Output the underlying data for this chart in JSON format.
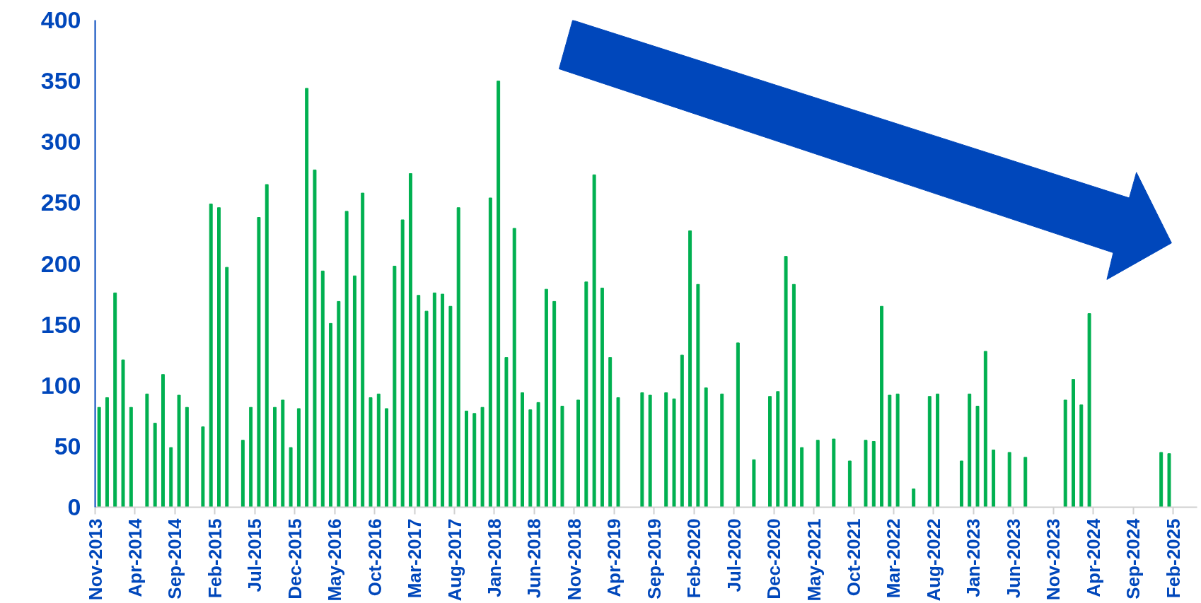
{
  "chart_data": {
    "type": "bar",
    "color": "#00b050",
    "x": [
      "2013-11",
      "2013-12",
      "2014-01",
      "2014-02",
      "2014-03",
      "2014-05",
      "2014-06",
      "2014-07",
      "2014-08",
      "2014-09",
      "2014-10",
      "2014-12",
      "2015-01",
      "2015-02",
      "2015-03",
      "2015-05",
      "2015-06",
      "2015-07",
      "2015-08",
      "2015-09",
      "2015-10",
      "2015-11",
      "2015-12",
      "2016-01",
      "2016-02",
      "2016-03",
      "2016-04",
      "2016-05",
      "2016-06",
      "2016-07",
      "2016-08",
      "2016-09",
      "2016-10",
      "2016-11",
      "2016-12",
      "2017-01",
      "2017-02",
      "2017-03",
      "2017-04",
      "2017-05",
      "2017-06",
      "2017-07",
      "2017-08",
      "2017-09",
      "2017-10",
      "2017-11",
      "2017-12",
      "2018-01",
      "2018-02",
      "2018-03",
      "2018-04",
      "2018-05",
      "2018-06",
      "2018-07",
      "2018-08",
      "2018-09",
      "2018-11",
      "2018-12",
      "2019-01",
      "2019-02",
      "2019-03",
      "2019-04",
      "2019-07",
      "2019-08",
      "2019-10",
      "2019-11",
      "2019-12",
      "2020-01",
      "2020-02",
      "2020-03",
      "2020-05",
      "2020-07",
      "2020-09",
      "2020-11",
      "2020-12",
      "2021-01",
      "2021-02",
      "2021-03",
      "2021-05",
      "2021-07",
      "2021-09",
      "2021-11",
      "2021-12",
      "2022-01",
      "2022-02",
      "2022-03",
      "2022-05",
      "2022-07",
      "2022-08",
      "2022-11",
      "2022-12",
      "2023-01",
      "2023-02",
      "2023-03",
      "2023-05",
      "2023-07",
      "2023-12",
      "2024-01",
      "2024-02",
      "2024-03",
      "2024-12",
      "2025-01"
    ],
    "values": [
      82,
      90,
      176,
      121,
      82,
      93,
      69,
      109,
      49,
      92,
      82,
      66,
      249,
      246,
      197,
      55,
      82,
      238,
      265,
      82,
      88,
      49,
      81,
      344,
      277,
      194,
      151,
      169,
      243,
      190,
      258,
      90,
      93,
      81,
      198,
      236,
      274,
      174,
      161,
      176,
      175,
      165,
      246,
      79,
      77,
      82,
      254,
      350,
      123,
      229,
      94,
      80,
      86,
      179,
      169,
      83,
      88,
      185,
      273,
      180,
      123,
      90,
      94,
      92,
      94,
      89,
      125,
      227,
      183,
      98,
      93,
      135,
      39,
      91,
      95,
      206,
      183,
      49,
      55,
      56,
      38,
      55,
      54,
      165,
      92,
      93,
      15,
      91,
      93,
      38,
      93,
      83,
      128,
      47,
      45,
      41,
      88,
      105,
      84,
      159,
      45,
      44
    ],
    "xlim": [
      "2013-11",
      "2025-05"
    ],
    "xticks": [
      {
        "value": "2013-11",
        "label": "Nov-2013"
      },
      {
        "value": "2014-04",
        "label": "Apr-2014"
      },
      {
        "value": "2014-09",
        "label": "Sep-2014"
      },
      {
        "value": "2015-02",
        "label": "Feb-2015"
      },
      {
        "value": "2015-07",
        "label": "Jul-2015"
      },
      {
        "value": "2015-12",
        "label": "Dec-2015"
      },
      {
        "value": "2016-05",
        "label": "May-2016"
      },
      {
        "value": "2016-10",
        "label": "Oct-2016"
      },
      {
        "value": "2017-03",
        "label": "Mar-2017"
      },
      {
        "value": "2017-08",
        "label": "Aug-2017"
      },
      {
        "value": "2018-01",
        "label": "Jan-2018"
      },
      {
        "value": "2018-06",
        "label": "Jun-2018"
      },
      {
        "value": "2018-11",
        "label": "Nov-2018"
      },
      {
        "value": "2019-04",
        "label": "Apr-2019"
      },
      {
        "value": "2019-09",
        "label": "Sep-2019"
      },
      {
        "value": "2020-02",
        "label": "Feb-2020"
      },
      {
        "value": "2020-07",
        "label": "Jul-2020"
      },
      {
        "value": "2020-12",
        "label": "Dec-2020"
      },
      {
        "value": "2021-05",
        "label": "May-2021"
      },
      {
        "value": "2021-10",
        "label": "Oct-2021"
      },
      {
        "value": "2022-03",
        "label": "Mar-2022"
      },
      {
        "value": "2022-08",
        "label": "Aug-2022"
      },
      {
        "value": "2023-01",
        "label": "Jan-2023"
      },
      {
        "value": "2023-06",
        "label": "Jun-2023"
      },
      {
        "value": "2023-11",
        "label": "Nov-2023"
      },
      {
        "value": "2024-04",
        "label": "Apr-2024"
      },
      {
        "value": "2024-09",
        "label": "Sep-2024"
      },
      {
        "value": "2025-02",
        "label": "Feb-2025"
      }
    ],
    "ylim": [
      0,
      400
    ],
    "yticks": [
      0,
      50,
      100,
      150,
      200,
      250,
      300,
      350,
      400
    ],
    "grid": false
  }
}
